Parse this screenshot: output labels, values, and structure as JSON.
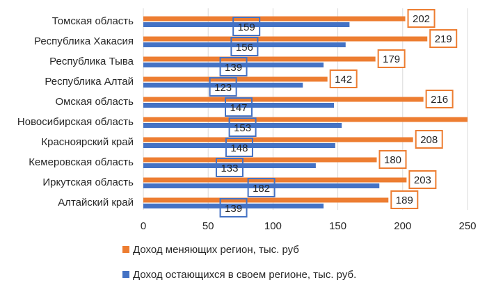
{
  "chart_data": {
    "type": "bar",
    "orientation": "horizontal",
    "title": "",
    "xlabel": "",
    "ylabel": "",
    "xlim": [
      0,
      250
    ],
    "x_ticks": [
      0,
      50,
      100,
      150,
      200,
      250
    ],
    "grid": true,
    "legend_position": "bottom",
    "categories": [
      "Томская область",
      "Республика Хакасия",
      "Республика Тыва",
      "Республика Алтай",
      "Омская область",
      "Новосибирская область",
      "Красноярский край",
      "Кемеровская область",
      "Иркутская область",
      "Алтайский край"
    ],
    "series": [
      {
        "name": "Доход меняющих регион, тыс. руб",
        "color": "#ED7D31",
        "values": [
          202,
          219,
          179,
          142,
          216,
          251,
          208,
          180,
          203,
          189
        ],
        "data_labels": [
          "202",
          "219",
          "179",
          "142",
          "216",
          "",
          "208",
          "180",
          "203",
          "189"
        ]
      },
      {
        "name": "Доход остающихся в своем регионе, тыс. руб.",
        "color": "#4472C4",
        "values": [
          159,
          156,
          139,
          123,
          147,
          153,
          148,
          133,
          182,
          139
        ],
        "data_labels": [
          "159",
          "156",
          "139",
          "123",
          "147",
          "153",
          "148",
          "133",
          "182",
          "139"
        ]
      }
    ]
  }
}
